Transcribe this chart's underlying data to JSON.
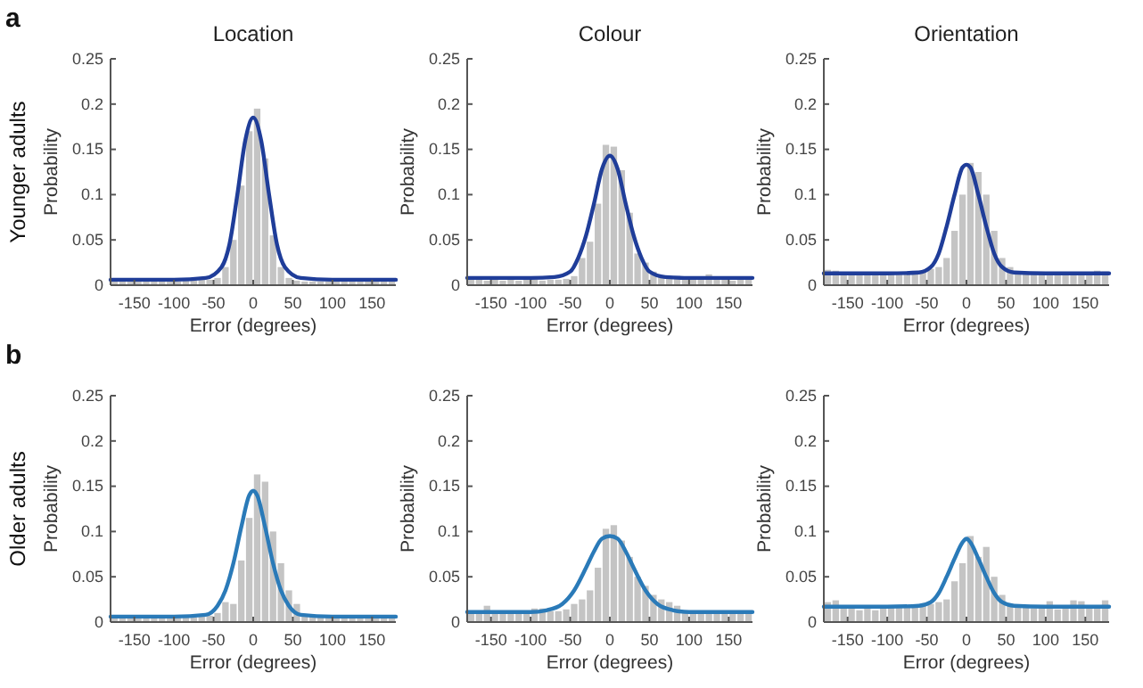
{
  "chart_data": [
    {
      "type": "histogram",
      "title": "Location",
      "xlabel": "Error (degrees)",
      "ylabel": "Probability",
      "annotations": [
        "a",
        "Younger adults"
      ],
      "bins": [
        -180,
        -170,
        -160,
        -150,
        -140,
        -130,
        -120,
        -110,
        -100,
        -90,
        -80,
        -70,
        -60,
        -50,
        -40,
        -30,
        -20,
        -10,
        0,
        10,
        20,
        30,
        40,
        50,
        60,
        70,
        80,
        90,
        100,
        110,
        120,
        130,
        140,
        150,
        160,
        170,
        180
      ],
      "xlim": [
        -180,
        180
      ],
      "xticks": [
        -150,
        -100,
        -50,
        0,
        50,
        100,
        150
      ],
      "ylim": [
        0,
        0.25
      ],
      "yticks": [
        0,
        0.05,
        0.1,
        0.15,
        0.2,
        0.25
      ],
      "series": [
        {
          "type": "histogram",
          "color": "#c4c4c4",
          "values": [
            0.004,
            0.004,
            0.004,
            0.004,
            0.004,
            0.004,
            0.004,
            0.004,
            0.004,
            0.005,
            0.005,
            0.006,
            0.006,
            0.008,
            0.02,
            0.05,
            0.11,
            0.17,
            0.195,
            0.14,
            0.055,
            0.02,
            0.008,
            0.005,
            0.004,
            0.004,
            0.004,
            0.004,
            0.004,
            0.004,
            0.004,
            0.004,
            0.004,
            0.004,
            0.004,
            0.004
          ]
        },
        {
          "type": "line",
          "color": "#1f3d99",
          "x": [
            -180,
            -100,
            -60,
            -40,
            -30,
            -20,
            -10,
            0,
            10,
            20,
            30,
            40,
            60,
            100,
            180
          ],
          "values": [
            0.006,
            0.006,
            0.008,
            0.02,
            0.045,
            0.1,
            0.16,
            0.185,
            0.16,
            0.1,
            0.045,
            0.02,
            0.008,
            0.006,
            0.006
          ]
        }
      ]
    },
    {
      "type": "histogram",
      "title": "Colour",
      "xlabel": "Error (degrees)",
      "ylabel": "Probability",
      "bins": [
        -180,
        -170,
        -160,
        -150,
        -140,
        -130,
        -120,
        -110,
        -100,
        -90,
        -80,
        -70,
        -60,
        -50,
        -40,
        -30,
        -20,
        -10,
        0,
        10,
        20,
        30,
        40,
        50,
        60,
        70,
        80,
        90,
        100,
        110,
        120,
        130,
        140,
        150,
        160,
        170,
        180
      ],
      "xlim": [
        -180,
        180
      ],
      "xticks": [
        -150,
        -100,
        -50,
        0,
        50,
        100,
        150
      ],
      "ylim": [
        0,
        0.25
      ],
      "yticks": [
        0,
        0.05,
        0.1,
        0.15,
        0.2,
        0.25
      ],
      "series": [
        {
          "type": "histogram",
          "color": "#c4c4c4",
          "values": [
            0.006,
            0.006,
            0.005,
            0.006,
            0.005,
            0.006,
            0.005,
            0.006,
            0.006,
            0.005,
            0.006,
            0.006,
            0.007,
            0.01,
            0.03,
            0.048,
            0.09,
            0.155,
            0.153,
            0.127,
            0.08,
            0.035,
            0.025,
            0.015,
            0.01,
            0.008,
            0.007,
            0.006,
            0.006,
            0.006,
            0.012,
            0.006,
            0.006,
            0.005,
            0.006,
            0.006
          ]
        },
        {
          "type": "line",
          "color": "#1f3d99",
          "x": [
            -180,
            -100,
            -70,
            -50,
            -40,
            -30,
            -20,
            -10,
            0,
            10,
            20,
            30,
            40,
            50,
            70,
            100,
            180
          ],
          "values": [
            0.008,
            0.008,
            0.009,
            0.015,
            0.03,
            0.055,
            0.09,
            0.128,
            0.143,
            0.128,
            0.09,
            0.055,
            0.03,
            0.015,
            0.009,
            0.008,
            0.008
          ]
        }
      ]
    },
    {
      "type": "histogram",
      "title": "Orientation",
      "xlabel": "Error (degrees)",
      "ylabel": "Probability",
      "bins": [
        -180,
        -170,
        -160,
        -150,
        -140,
        -130,
        -120,
        -110,
        -100,
        -90,
        -80,
        -70,
        -60,
        -50,
        -40,
        -30,
        -20,
        -10,
        0,
        10,
        20,
        30,
        40,
        50,
        60,
        70,
        80,
        90,
        100,
        110,
        120,
        130,
        140,
        150,
        160,
        170,
        180
      ],
      "xlim": [
        -180,
        180
      ],
      "xticks": [
        -150,
        -100,
        -50,
        0,
        50,
        100,
        150
      ],
      "ylim": [
        0,
        0.25
      ],
      "yticks": [
        0,
        0.05,
        0.1,
        0.15,
        0.2,
        0.25
      ],
      "series": [
        {
          "type": "histogram",
          "color": "#c4c4c4",
          "values": [
            0.017,
            0.016,
            0.013,
            0.014,
            0.013,
            0.012,
            0.013,
            0.012,
            0.013,
            0.013,
            0.012,
            0.013,
            0.014,
            0.018,
            0.02,
            0.03,
            0.06,
            0.1,
            0.135,
            0.125,
            0.1,
            0.06,
            0.03,
            0.02,
            0.015,
            0.013,
            0.012,
            0.013,
            0.012,
            0.012,
            0.013,
            0.013,
            0.012,
            0.014,
            0.016,
            0.015
          ]
        },
        {
          "type": "line",
          "color": "#1f3d99",
          "x": [
            -180,
            -100,
            -60,
            -45,
            -35,
            -25,
            -15,
            -5,
            0,
            5,
            15,
            25,
            35,
            45,
            60,
            100,
            180
          ],
          "values": [
            0.013,
            0.013,
            0.014,
            0.02,
            0.035,
            0.065,
            0.1,
            0.13,
            0.133,
            0.13,
            0.1,
            0.065,
            0.035,
            0.02,
            0.014,
            0.013,
            0.013
          ]
        }
      ]
    },
    {
      "type": "histogram",
      "xlabel": "Error (degrees)",
      "ylabel": "Probability",
      "annotations": [
        "b",
        "Older adults"
      ],
      "bins": [
        -180,
        -170,
        -160,
        -150,
        -140,
        -130,
        -120,
        -110,
        -100,
        -90,
        -80,
        -70,
        -60,
        -50,
        -40,
        -30,
        -20,
        -10,
        0,
        10,
        20,
        30,
        40,
        50,
        60,
        70,
        80,
        90,
        100,
        110,
        120,
        130,
        140,
        150,
        160,
        170,
        180
      ],
      "xlim": [
        -180,
        180
      ],
      "xticks": [
        -150,
        -100,
        -50,
        0,
        50,
        100,
        150
      ],
      "ylim": [
        0,
        0.25
      ],
      "yticks": [
        0,
        0.05,
        0.1,
        0.15,
        0.2,
        0.25
      ],
      "series": [
        {
          "type": "histogram",
          "color": "#c4c4c4",
          "values": [
            0.005,
            0.005,
            0.005,
            0.005,
            0.005,
            0.005,
            0.005,
            0.005,
            0.005,
            0.005,
            0.005,
            0.006,
            0.007,
            0.01,
            0.022,
            0.02,
            0.068,
            0.115,
            0.163,
            0.155,
            0.1,
            0.065,
            0.035,
            0.02,
            0.008,
            0.006,
            0.005,
            0.005,
            0.005,
            0.005,
            0.005,
            0.005,
            0.005,
            0.005,
            0.005,
            0.005
          ]
        },
        {
          "type": "line",
          "color": "#2a7ab8",
          "x": [
            -180,
            -100,
            -60,
            -45,
            -35,
            -25,
            -15,
            -5,
            0,
            5,
            15,
            25,
            35,
            45,
            60,
            100,
            180
          ],
          "values": [
            0.006,
            0.006,
            0.008,
            0.018,
            0.035,
            0.065,
            0.105,
            0.14,
            0.145,
            0.14,
            0.105,
            0.065,
            0.035,
            0.018,
            0.008,
            0.006,
            0.006
          ]
        }
      ]
    },
    {
      "type": "histogram",
      "xlabel": "Error (degrees)",
      "ylabel": "Probability",
      "bins": [
        -180,
        -170,
        -160,
        -150,
        -140,
        -130,
        -120,
        -110,
        -100,
        -90,
        -80,
        -70,
        -60,
        -50,
        -40,
        -30,
        -20,
        -10,
        0,
        10,
        20,
        30,
        40,
        50,
        60,
        70,
        80,
        90,
        100,
        110,
        120,
        130,
        140,
        150,
        160,
        170,
        180
      ],
      "xlim": [
        -180,
        180
      ],
      "xticks": [
        -150,
        -100,
        -50,
        0,
        50,
        100,
        150
      ],
      "ylim": [
        0,
        0.25
      ],
      "yticks": [
        0,
        0.05,
        0.1,
        0.15,
        0.2,
        0.25
      ],
      "series": [
        {
          "type": "histogram",
          "color": "#c4c4c4",
          "values": [
            0.01,
            0.012,
            0.018,
            0.01,
            0.01,
            0.009,
            0.01,
            0.01,
            0.015,
            0.015,
            0.012,
            0.012,
            0.014,
            0.02,
            0.025,
            0.035,
            0.06,
            0.103,
            0.107,
            0.09,
            0.072,
            0.05,
            0.04,
            0.03,
            0.025,
            0.022,
            0.018,
            0.012,
            0.01,
            0.01,
            0.01,
            0.011,
            0.01,
            0.01,
            0.009,
            0.011
          ]
        },
        {
          "type": "line",
          "color": "#2a7ab8",
          "x": [
            -180,
            -100,
            -80,
            -60,
            -45,
            -30,
            -20,
            -10,
            0,
            10,
            20,
            30,
            45,
            60,
            80,
            100,
            180
          ],
          "values": [
            0.011,
            0.011,
            0.013,
            0.02,
            0.035,
            0.06,
            0.078,
            0.092,
            0.095,
            0.092,
            0.078,
            0.06,
            0.035,
            0.02,
            0.013,
            0.011,
            0.011
          ]
        }
      ]
    },
    {
      "type": "histogram",
      "xlabel": "Error (degrees)",
      "ylabel": "Probability",
      "bins": [
        -180,
        -170,
        -160,
        -150,
        -140,
        -130,
        -120,
        -110,
        -100,
        -90,
        -80,
        -70,
        -60,
        -50,
        -40,
        -30,
        -20,
        -10,
        0,
        10,
        20,
        30,
        40,
        50,
        60,
        70,
        80,
        90,
        100,
        110,
        120,
        130,
        140,
        150,
        160,
        170,
        180
      ],
      "xlim": [
        -180,
        180
      ],
      "xticks": [
        -150,
        -100,
        -50,
        0,
        50,
        100,
        150
      ],
      "ylim": [
        0,
        0.25
      ],
      "yticks": [
        0,
        0.05,
        0.1,
        0.15,
        0.2,
        0.25
      ],
      "series": [
        {
          "type": "histogram",
          "color": "#c4c4c4",
          "values": [
            0.022,
            0.024,
            0.016,
            0.015,
            0.013,
            0.018,
            0.013,
            0.016,
            0.017,
            0.016,
            0.018,
            0.017,
            0.018,
            0.02,
            0.022,
            0.025,
            0.045,
            0.065,
            0.095,
            0.072,
            0.083,
            0.05,
            0.03,
            0.02,
            0.017,
            0.016,
            0.015,
            0.016,
            0.023,
            0.014,
            0.017,
            0.024,
            0.023,
            0.017,
            0.016,
            0.024
          ]
        },
        {
          "type": "line",
          "color": "#2a7ab8",
          "x": [
            -180,
            -100,
            -60,
            -45,
            -35,
            -25,
            -15,
            -5,
            0,
            5,
            15,
            25,
            35,
            45,
            60,
            100,
            180
          ],
          "values": [
            0.017,
            0.017,
            0.018,
            0.022,
            0.032,
            0.05,
            0.07,
            0.088,
            0.092,
            0.088,
            0.07,
            0.05,
            0.032,
            0.022,
            0.018,
            0.017,
            0.017
          ]
        }
      ]
    }
  ]
}
